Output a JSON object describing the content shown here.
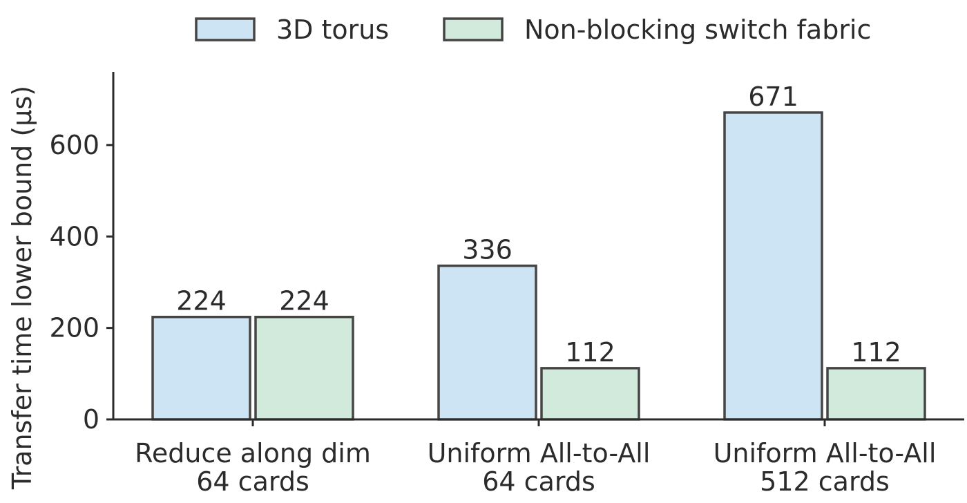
{
  "chart_data": {
    "type": "bar",
    "title": "",
    "xlabel": "",
    "ylabel": "Transfer time lower bound (µs)",
    "categories": [
      [
        "Reduce along dim",
        "64 cards"
      ],
      [
        "Uniform All-to-All",
        "64 cards"
      ],
      [
        "Uniform All-to-All",
        "512 cards"
      ]
    ],
    "series": [
      {
        "name": "3D torus",
        "values": [
          224,
          336,
          671
        ],
        "color": "#cde4f4"
      },
      {
        "name": "Non-blocking switch fabric",
        "values": [
          224,
          112,
          112
        ],
        "color": "#d1eadc"
      }
    ],
    "ylim": [
      0,
      760
    ],
    "yticks": [
      0,
      200,
      400,
      600
    ],
    "edge_color": "#454545",
    "grid": false,
    "legend_position": "top"
  }
}
